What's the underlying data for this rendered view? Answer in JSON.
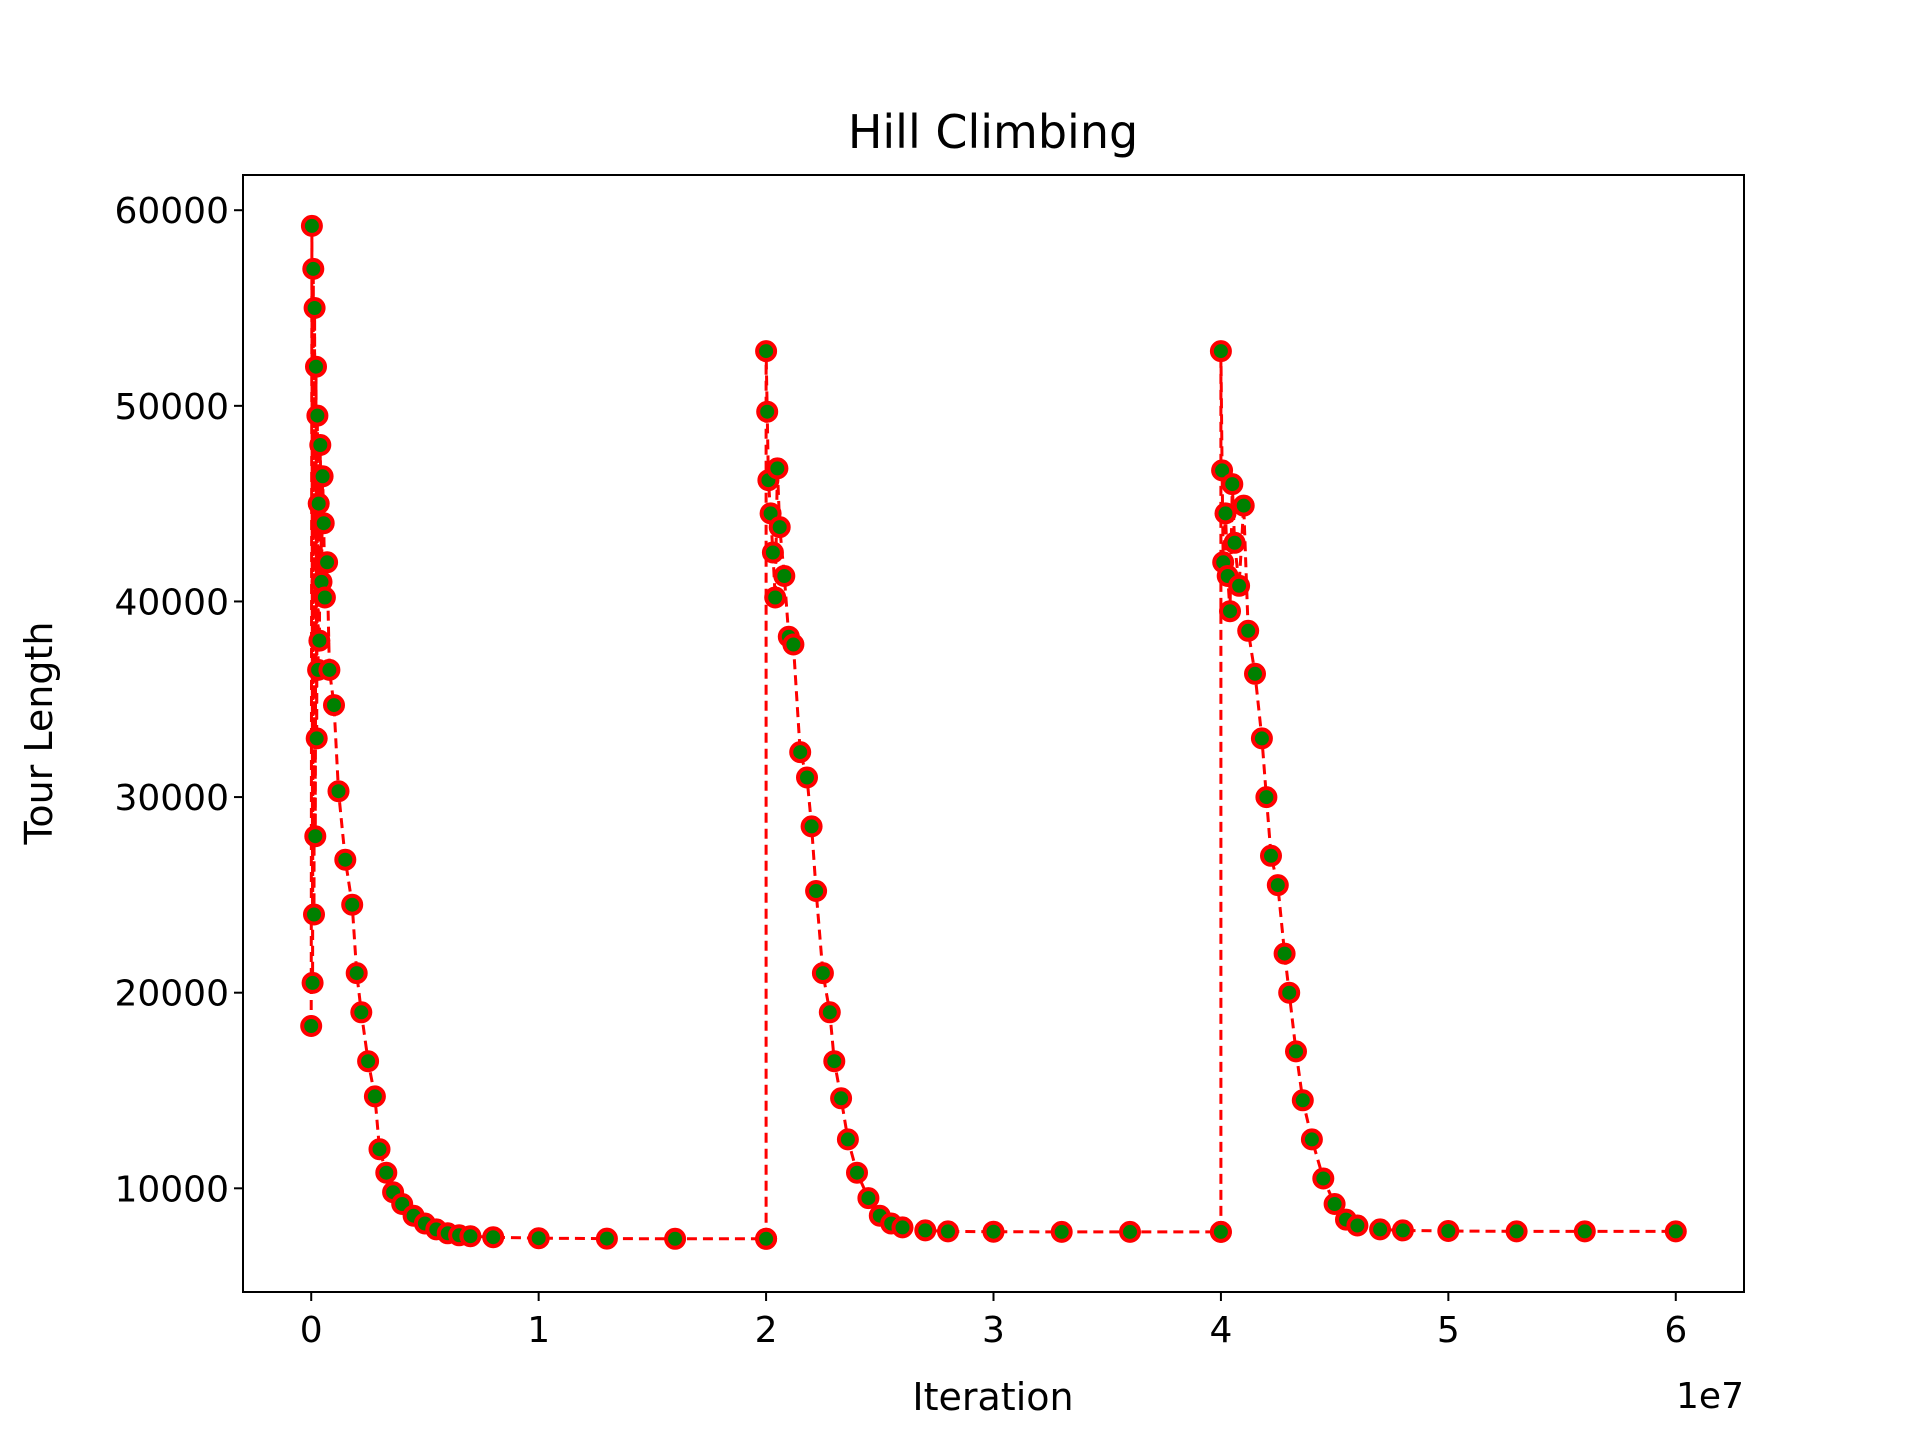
{
  "chart_data": {
    "type": "line",
    "title": "Hill Climbing",
    "xlabel": "Iteration",
    "ylabel": "Tour Length",
    "x_offset_label": "1e7",
    "xlim": [
      -0.3,
      6.3
    ],
    "ylim": [
      4700,
      61800
    ],
    "grid": false,
    "x_ticks": [
      0,
      1,
      2,
      3,
      4,
      5,
      6
    ],
    "x_tick_labels": [
      "0",
      "1",
      "2",
      "3",
      "4",
      "5",
      "6"
    ],
    "y_ticks": [
      10000,
      20000,
      30000,
      40000,
      50000,
      60000
    ],
    "y_tick_labels": [
      "10000",
      "20000",
      "30000",
      "40000",
      "50000",
      "60000"
    ],
    "line_color": "#ff0000",
    "marker_edge_color": "#ff0000",
    "marker_face_color": "#008000",
    "line_style": "dashed",
    "series": [
      {
        "x": [
          0.0,
          0.003,
          0.006,
          0.009,
          0.012,
          0.015,
          0.018,
          0.021,
          0.024,
          0.027,
          0.03,
          0.033,
          0.036,
          0.04,
          0.045,
          0.05,
          0.055,
          0.06,
          0.07,
          0.08,
          0.1,
          0.12,
          0.15,
          0.18,
          0.2,
          0.22,
          0.25,
          0.28,
          0.3,
          0.33,
          0.36,
          0.4,
          0.45,
          0.5,
          0.55,
          0.6,
          0.65,
          0.7,
          0.8,
          1.0,
          1.3,
          1.6,
          2.0
        ],
        "y": [
          18300,
          59200,
          20500,
          57000,
          24000,
          55000,
          28000,
          52000,
          33000,
          49500,
          36500,
          45000,
          38000,
          48000,
          41000,
          46400,
          44000,
          40200,
          42000,
          36500,
          34700,
          30300,
          26800,
          24500,
          21000,
          19000,
          16500,
          14700,
          12000,
          10800,
          9800,
          9200,
          8600,
          8200,
          7900,
          7700,
          7600,
          7550,
          7500,
          7450,
          7430,
          7420,
          7420
        ]
      },
      {
        "x": [
          2.0,
          2.0,
          2.005,
          2.01,
          2.02,
          2.03,
          2.04,
          2.05,
          2.06,
          2.08,
          2.1,
          2.12,
          2.15,
          2.18,
          2.2,
          2.22,
          2.25,
          2.28,
          2.3,
          2.33,
          2.36,
          2.4,
          2.45,
          2.5,
          2.55,
          2.6,
          2.7,
          2.8,
          3.0,
          3.3,
          3.6,
          4.0
        ],
        "y": [
          7420,
          52800,
          49700,
          46200,
          44500,
          42500,
          40200,
          46800,
          43800,
          41300,
          38200,
          37800,
          32300,
          31000,
          28500,
          25200,
          21000,
          19000,
          16500,
          14600,
          12500,
          10800,
          9500,
          8600,
          8200,
          8000,
          7850,
          7800,
          7780,
          7770,
          7770,
          7770
        ]
      },
      {
        "x": [
          4.0,
          4.0,
          4.005,
          4.01,
          4.02,
          4.03,
          4.04,
          4.05,
          4.06,
          4.08,
          4.1,
          4.12,
          4.15,
          4.18,
          4.2,
          4.22,
          4.25,
          4.28,
          4.3,
          4.33,
          4.36,
          4.4,
          4.45,
          4.5,
          4.55,
          4.6,
          4.7,
          4.8,
          5.0,
          5.3,
          5.6,
          6.0
        ],
        "y": [
          7770,
          52800,
          46700,
          42000,
          44500,
          41300,
          39500,
          46000,
          43000,
          40800,
          44900,
          38500,
          36300,
          33000,
          30000,
          27000,
          25500,
          22000,
          20000,
          17000,
          14500,
          12500,
          10500,
          9200,
          8400,
          8100,
          7900,
          7850,
          7820,
          7800,
          7800,
          7800
        ]
      }
    ]
  }
}
